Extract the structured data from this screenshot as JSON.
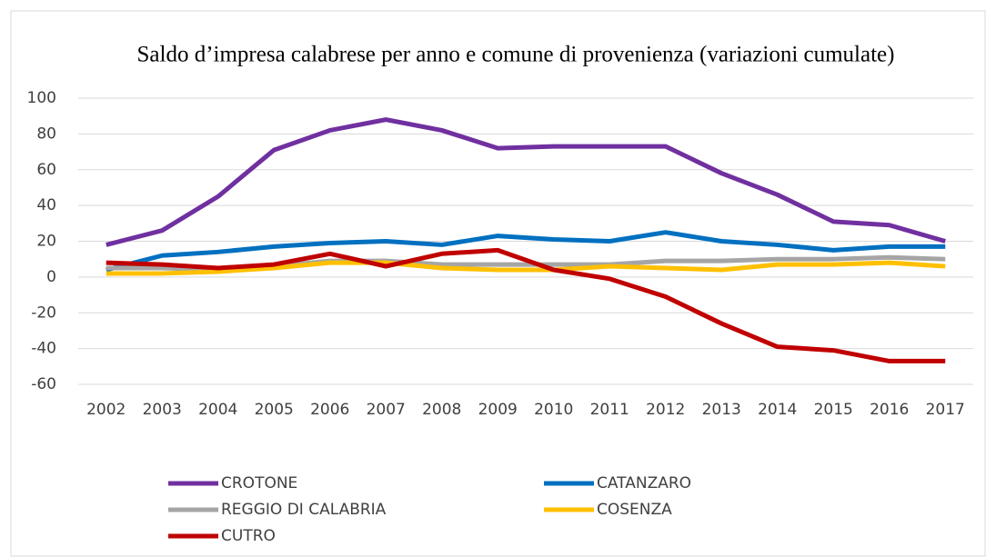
{
  "chart_data": {
    "type": "line",
    "title": "Saldo d’impresa calabrese per anno e comune di provenienza (variazioni cumulate)",
    "categories": [
      "2002",
      "2003",
      "2004",
      "2005",
      "2006",
      "2007",
      "2008",
      "2009",
      "2010",
      "2011",
      "2012",
      "2013",
      "2014",
      "2015",
      "2016",
      "2017"
    ],
    "series": [
      {
        "name": "CROTONE",
        "color": "#7030a0",
        "values": [
          18,
          26,
          45,
          71,
          82,
          88,
          82,
          72,
          73,
          73,
          73,
          58,
          46,
          31,
          29,
          20
        ]
      },
      {
        "name": "CATANZARO",
        "color": "#0070c0",
        "values": [
          4,
          12,
          14,
          17,
          19,
          20,
          18,
          23,
          21,
          20,
          25,
          20,
          18,
          15,
          17,
          17
        ]
      },
      {
        "name": "REGGIO DI CALABRIA",
        "color": "#a5a5a5",
        "values": [
          5,
          5,
          4,
          6,
          9,
          9,
          7,
          7,
          7,
          7,
          9,
          9,
          10,
          10,
          11,
          10
        ]
      },
      {
        "name": "COSENZA",
        "color": "#ffc000",
        "values": [
          2,
          2,
          3,
          5,
          8,
          8,
          5,
          4,
          4,
          6,
          5,
          4,
          7,
          7,
          8,
          6
        ]
      },
      {
        "name": "CUTRO",
        "color": "#c00000",
        "values": [
          8,
          7,
          5,
          7,
          13,
          6,
          13,
          15,
          4,
          -1,
          -11,
          -26,
          -39,
          -41,
          -47,
          -47
        ]
      }
    ],
    "ylim": [
      -60,
      100
    ],
    "yticks": [
      -60,
      -40,
      -20,
      0,
      20,
      40,
      60,
      80,
      100
    ],
    "grid": true
  }
}
